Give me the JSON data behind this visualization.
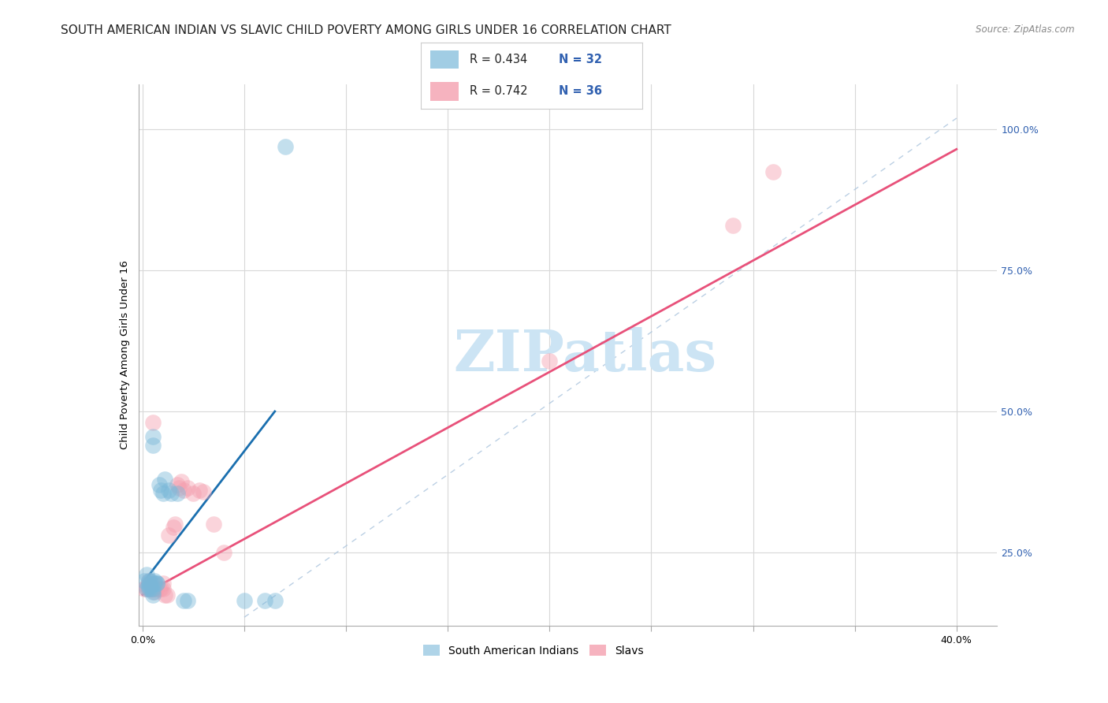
{
  "title": "SOUTH AMERICAN INDIAN VS SLAVIC CHILD POVERTY AMONG GIRLS UNDER 16 CORRELATION CHART",
  "source": "Source: ZipAtlas.com",
  "ylabel": "Child Poverty Among Girls Under 16",
  "watermark": "ZIPatlas",
  "xlim": [
    -0.002,
    0.42
  ],
  "ylim": [
    0.12,
    1.08
  ],
  "xticks": [
    0.0,
    0.05,
    0.1,
    0.15,
    0.2,
    0.25,
    0.3,
    0.35,
    0.4
  ],
  "xticklabels": [
    "0.0%",
    "",
    "",
    "",
    "",
    "",
    "",
    "",
    "40.0%"
  ],
  "yticks_right": [
    0.25,
    0.5,
    0.75,
    1.0
  ],
  "yticklabels_right": [
    "25.0%",
    "50.0%",
    "75.0%",
    "100.0%"
  ],
  "blue_color": "#7ab8d9",
  "pink_color": "#f4a0b0",
  "blue_line_color": "#1a6faf",
  "pink_line_color": "#e8517a",
  "legend_blue_R": "0.434",
  "legend_blue_N": "32",
  "legend_pink_R": "0.742",
  "legend_pink_N": "36",
  "blue_scatter_x": [
    0.001,
    0.002,
    0.002,
    0.003,
    0.003,
    0.003,
    0.003,
    0.004,
    0.004,
    0.004,
    0.005,
    0.005,
    0.005,
    0.005,
    0.005,
    0.006,
    0.006,
    0.007,
    0.007,
    0.008,
    0.009,
    0.01,
    0.011,
    0.013,
    0.014,
    0.017,
    0.02,
    0.022,
    0.05,
    0.06,
    0.065,
    0.07
  ],
  "blue_scatter_y": [
    0.2,
    0.21,
    0.185,
    0.185,
    0.19,
    0.195,
    0.2,
    0.185,
    0.19,
    0.2,
    0.175,
    0.18,
    0.185,
    0.44,
    0.455,
    0.195,
    0.2,
    0.195,
    0.195,
    0.37,
    0.36,
    0.355,
    0.38,
    0.36,
    0.355,
    0.355,
    0.165,
    0.165,
    0.165,
    0.165,
    0.165,
    0.97
  ],
  "pink_scatter_x": [
    0.001,
    0.002,
    0.002,
    0.003,
    0.003,
    0.004,
    0.004,
    0.005,
    0.005,
    0.005,
    0.005,
    0.006,
    0.006,
    0.007,
    0.008,
    0.009,
    0.01,
    0.01,
    0.011,
    0.012,
    0.013,
    0.015,
    0.016,
    0.017,
    0.018,
    0.019,
    0.02,
    0.022,
    0.025,
    0.028,
    0.03,
    0.035,
    0.04,
    0.2,
    0.29,
    0.31
  ],
  "pink_scatter_y": [
    0.185,
    0.185,
    0.19,
    0.185,
    0.2,
    0.185,
    0.195,
    0.185,
    0.19,
    0.195,
    0.48,
    0.18,
    0.185,
    0.185,
    0.185,
    0.185,
    0.185,
    0.195,
    0.175,
    0.175,
    0.28,
    0.295,
    0.3,
    0.37,
    0.365,
    0.375,
    0.36,
    0.365,
    0.355,
    0.36,
    0.358,
    0.3,
    0.25,
    0.59,
    0.83,
    0.925
  ],
  "blue_regline_x": [
    0.0,
    0.065
  ],
  "blue_regline_y": [
    0.195,
    0.5
  ],
  "pink_regline_x": [
    0.0,
    0.4
  ],
  "pink_regline_y": [
    0.175,
    0.965
  ],
  "dashed_line_x": [
    0.05,
    0.4
  ],
  "dashed_line_y": [
    0.135,
    1.02
  ],
  "grid_color": "#d8d8d8",
  "background_color": "#ffffff",
  "title_fontsize": 11,
  "axis_label_fontsize": 9.5,
  "tick_fontsize": 9,
  "watermark_fontsize": 52,
  "watermark_color": "#cce4f4",
  "source_color": "#888888",
  "right_tick_color": "#3060b0",
  "legend_R_color": "#3060b0",
  "legend_N_color": "#d04010"
}
